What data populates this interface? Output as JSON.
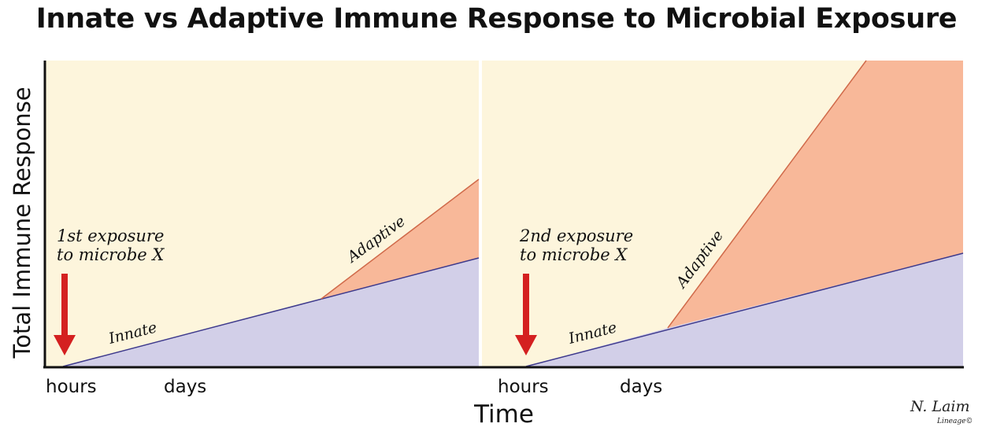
{
  "title": "Innate vs Adaptive Immune Response to Microbial Exposure",
  "y_axis_label": "Total Immune Response",
  "x_axis_label": "Time",
  "x_ticks": [
    "hours",
    "days",
    "hours",
    "days"
  ],
  "panels": [
    {
      "exposure_note": [
        "1st exposure",
        "to microbe X"
      ],
      "innate_label": "Innate",
      "adaptive_label": "Adaptive"
    },
    {
      "exposure_note": [
        "2nd exposure",
        "to microbe X"
      ],
      "innate_label": "Innate",
      "adaptive_label": "Adaptive"
    }
  ],
  "signature": {
    "name": "N. Laim",
    "credit": "Lineage©"
  },
  "colors": {
    "background": "#fdf5dc",
    "innate_fill": "#d2cfe8",
    "innate_line": "#3e3a8c",
    "adaptive_fill": "#f8b899",
    "adaptive_line": "#d06a4a",
    "arrow": "#d42020",
    "axis": "#111111"
  }
}
